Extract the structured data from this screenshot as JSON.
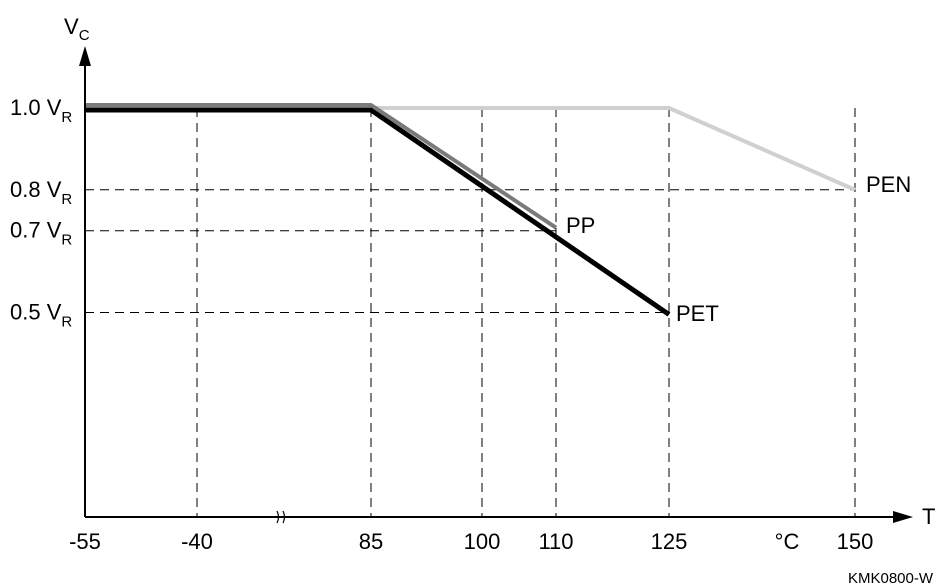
{
  "chart_data": {
    "type": "line",
    "x_axis_label": "T",
    "y_axis_label_main": "V",
    "y_axis_label_sub": "C",
    "unit_label": "°C",
    "x_ticks": [
      "-55",
      "-40",
      "85",
      "100",
      "110",
      "125",
      "150"
    ],
    "x_tick_values": [
      -55,
      -40,
      85,
      100,
      110,
      125,
      150
    ],
    "axis_break_after": "-40",
    "y_ticks": [
      {
        "value": 1.0,
        "main": "1.0 V",
        "sub": "R"
      },
      {
        "value": 0.8,
        "main": "0.8 V",
        "sub": "R"
      },
      {
        "value": 0.7,
        "main": "0.7 V",
        "sub": "R"
      },
      {
        "value": 0.5,
        "main": "0.5 V",
        "sub": "R"
      }
    ],
    "grid": "dashed",
    "series": [
      {
        "name": "PEN",
        "color": "#d0d0d0",
        "points": [
          [
            -55,
            1.0
          ],
          [
            125,
            1.0
          ],
          [
            150,
            0.8
          ]
        ]
      },
      {
        "name": "PP",
        "color": "#7a7a7a",
        "points": [
          [
            -55,
            1.0
          ],
          [
            85,
            1.0
          ],
          [
            110,
            0.7
          ]
        ]
      },
      {
        "name": "PET",
        "color": "#000000",
        "points": [
          [
            -55,
            1.0
          ],
          [
            85,
            1.0
          ],
          [
            125,
            0.5
          ]
        ]
      }
    ],
    "figure_code": "KMK0800-W"
  }
}
